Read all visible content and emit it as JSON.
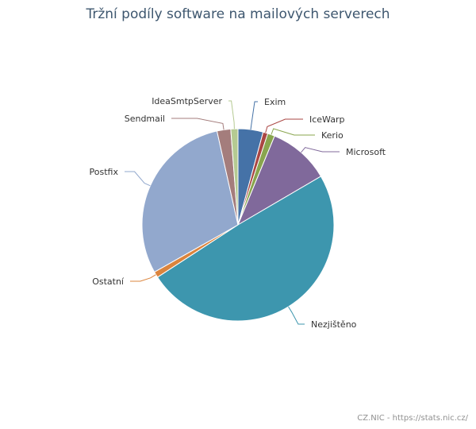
{
  "chart_data": {
    "type": "pie",
    "title": "Tržní podíly software na mailových serverech",
    "categories": [
      "Exim",
      "IceWarp",
      "Kerio",
      "Microsoft",
      "Nezjištěno",
      "Ostatní",
      "Postfix",
      "Sendmail",
      "IdeaSmtpServer"
    ],
    "values": [
      4.2,
      0.8,
      1.2,
      10.3,
      49.0,
      1.0,
      29.5,
      2.3,
      1.2
    ],
    "colors": [
      "#4572a7",
      "#aa4643",
      "#89a54e",
      "#80699b",
      "#3d96ae",
      "#db843d",
      "#92a8cd",
      "#a47d7c",
      "#b5ca92"
    ],
    "legend": "none"
  },
  "credits": "CZ.NIC - https://stats.nic.cz/"
}
